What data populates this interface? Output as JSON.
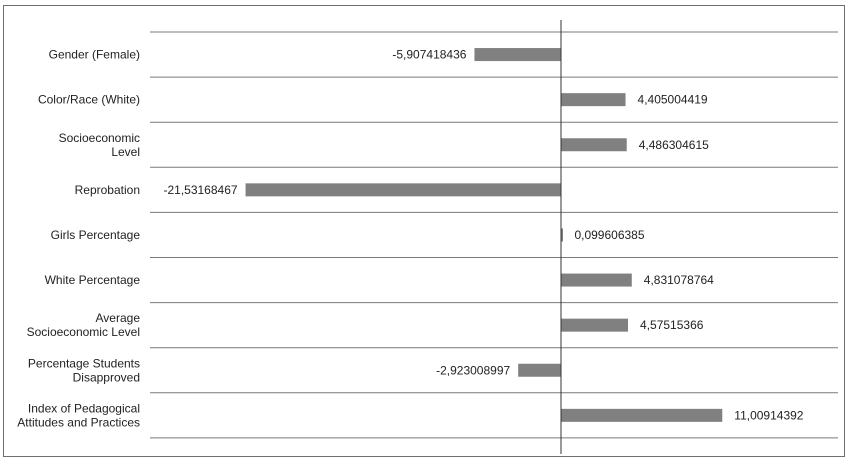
{
  "chart_data": {
    "type": "bar",
    "orientation": "horizontal",
    "categories": [
      [
        "Gender (Female)"
      ],
      [
        "Color/Race (White)"
      ],
      [
        "Socioeconomic",
        "Level"
      ],
      [
        "Reprobation"
      ],
      [
        "Girls Percentage"
      ],
      [
        "White Percentage"
      ],
      [
        "Average",
        "Socioeconomic Level"
      ],
      [
        "Percentage Students",
        "Disapproved"
      ],
      [
        "Index of Pedagogical",
        "Attitudes and Practices"
      ]
    ],
    "values": [
      -5.907418436,
      4.405004419,
      4.486304615,
      -21.53168467,
      0.099606385,
      4.831078764,
      4.57515366,
      -2.923008997,
      11.00914392
    ],
    "value_labels": [
      "-5,907418436",
      "4,405004419",
      "4,486304615",
      "-21,53168467",
      "0,099606385",
      "4,831078764",
      "4,57515366",
      "-2,923008997",
      "11,00914392"
    ],
    "xlim": [
      -24,
      20
    ],
    "grid": true,
    "legend": "none",
    "colors": {
      "bar": "#808080",
      "grid": "#7a7a7a",
      "axis": "#333333",
      "frame": "#6f6f6f"
    }
  }
}
